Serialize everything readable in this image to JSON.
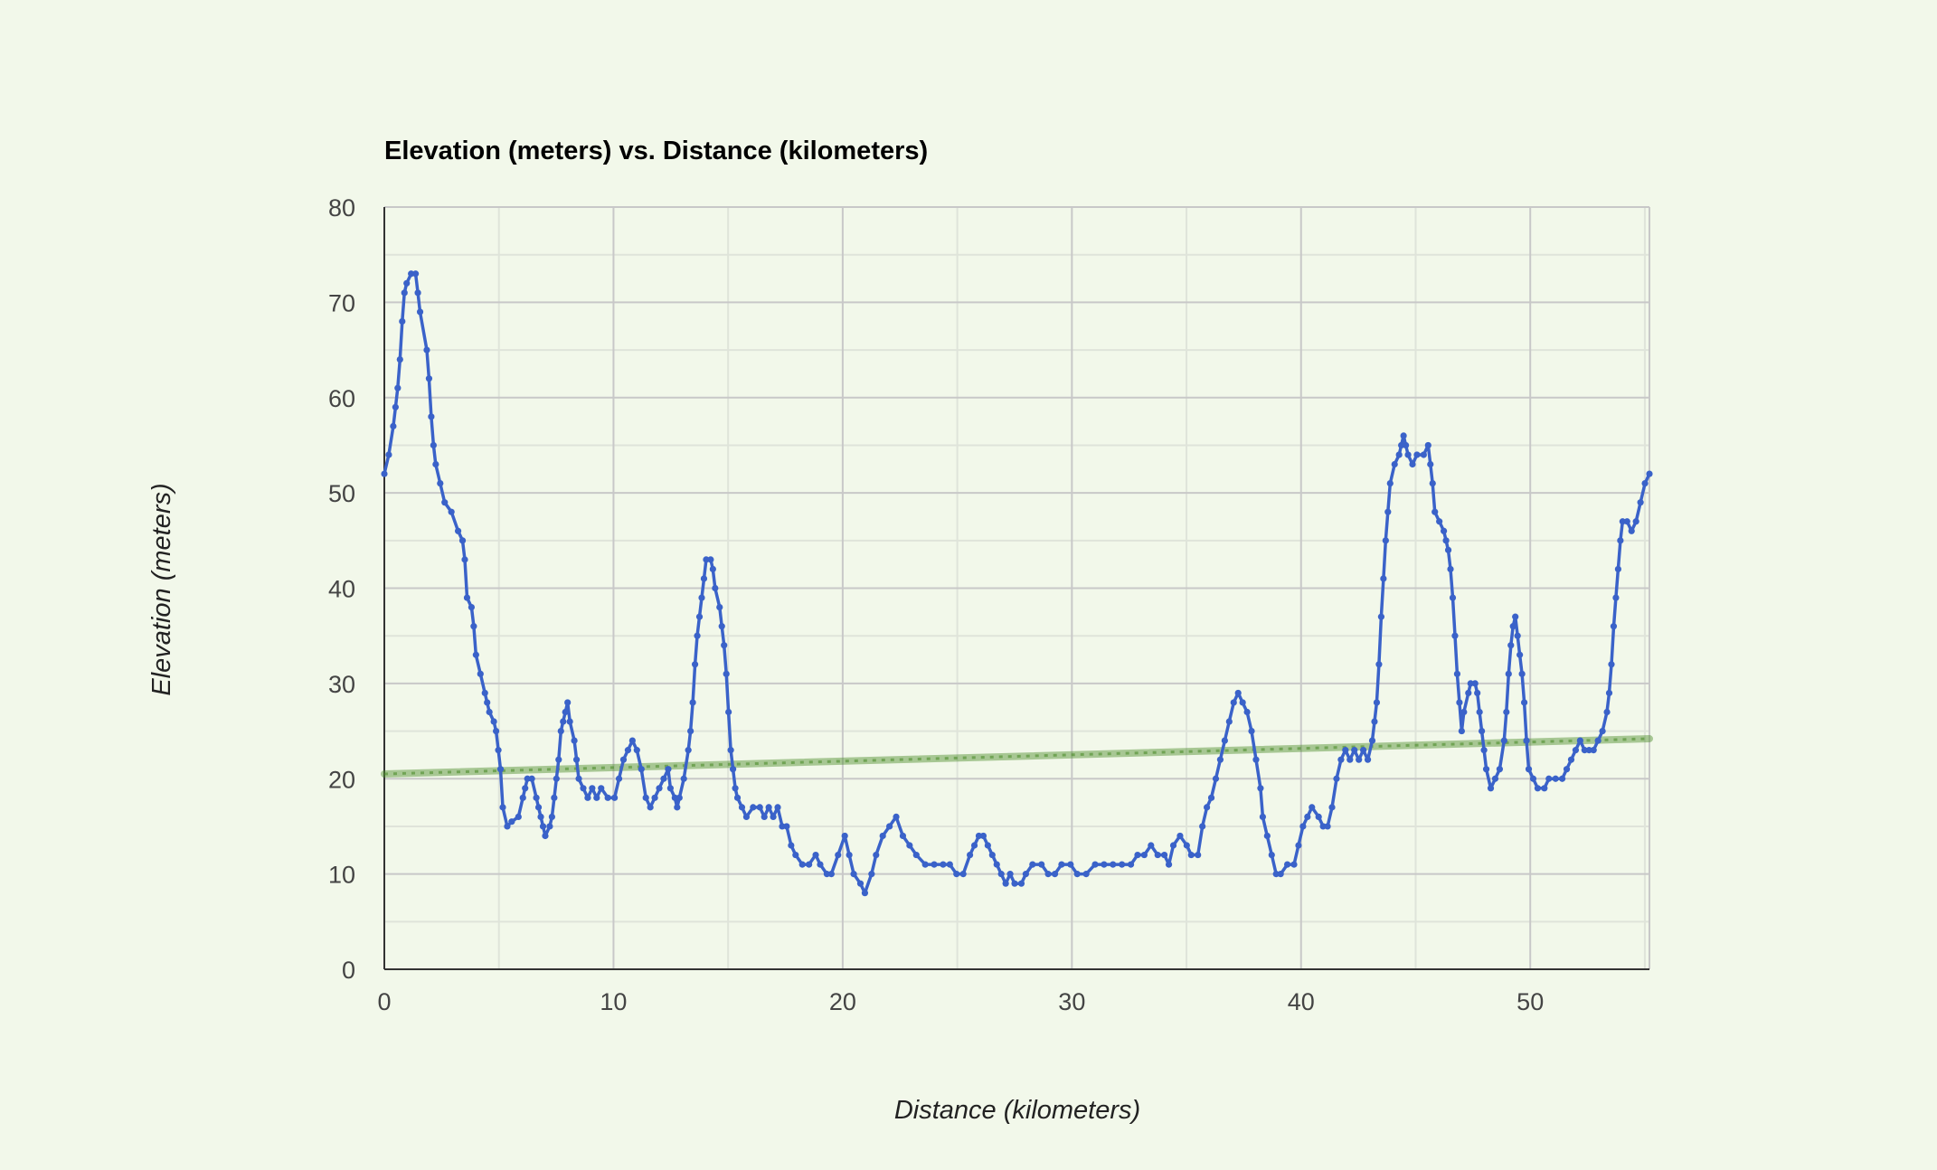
{
  "chart_data": {
    "type": "scatter",
    "title": "Elevation (meters) vs. Distance (kilometers)",
    "xlabel": "Distance (kilometers)",
    "ylabel": "Elevation (meters)",
    "xlim": [
      0,
      55.2
    ],
    "ylim": [
      0,
      80
    ],
    "x_ticks": [
      "0",
      "10",
      "20",
      "30",
      "40",
      "50"
    ],
    "y_ticks": [
      "0",
      "10",
      "20",
      "30",
      "40",
      "50",
      "60",
      "70",
      "80"
    ],
    "grid": true,
    "legend": "none",
    "series": [
      {
        "color": "#3a62c9",
        "points": [
          [
            0.0,
            52
          ],
          [
            0.2,
            54
          ],
          [
            0.4,
            57
          ],
          [
            0.5,
            59
          ],
          [
            0.6,
            61
          ],
          [
            0.7,
            64
          ],
          [
            0.8,
            68
          ],
          [
            0.9,
            71
          ],
          [
            1.0,
            72
          ],
          [
            1.2,
            73
          ],
          [
            1.4,
            73
          ],
          [
            1.5,
            71
          ],
          [
            1.6,
            69
          ],
          [
            1.9,
            65
          ],
          [
            2.0,
            62
          ],
          [
            2.1,
            58
          ],
          [
            2.2,
            55
          ],
          [
            2.3,
            53
          ],
          [
            2.5,
            51
          ],
          [
            2.7,
            49
          ],
          [
            3.0,
            48
          ],
          [
            3.3,
            46
          ],
          [
            3.5,
            45
          ],
          [
            3.6,
            43
          ],
          [
            3.7,
            39
          ],
          [
            3.9,
            38
          ],
          [
            4.0,
            36
          ],
          [
            4.1,
            33
          ],
          [
            4.3,
            31
          ],
          [
            4.5,
            29
          ],
          [
            4.6,
            28
          ],
          [
            4.7,
            27
          ],
          [
            4.9,
            26
          ],
          [
            5.0,
            25
          ],
          [
            5.1,
            23
          ],
          [
            5.2,
            21
          ],
          [
            5.3,
            17
          ],
          [
            5.5,
            15
          ],
          [
            5.7,
            15.5
          ],
          [
            6.0,
            16
          ],
          [
            6.2,
            18
          ],
          [
            6.3,
            19
          ],
          [
            6.4,
            20
          ],
          [
            6.6,
            20
          ],
          [
            6.8,
            18
          ],
          [
            6.9,
            17
          ],
          [
            7.0,
            16
          ],
          [
            7.1,
            15
          ],
          [
            7.2,
            14
          ],
          [
            7.4,
            15
          ],
          [
            7.5,
            16
          ],
          [
            7.6,
            18
          ],
          [
            7.7,
            20
          ],
          [
            7.8,
            22
          ],
          [
            7.9,
            25
          ],
          [
            8.0,
            26
          ],
          [
            8.1,
            27
          ],
          [
            8.2,
            28
          ],
          [
            8.3,
            26
          ],
          [
            8.5,
            24
          ],
          [
            8.6,
            22
          ],
          [
            8.7,
            20
          ],
          [
            8.9,
            19
          ],
          [
            9.1,
            18
          ],
          [
            9.3,
            19
          ],
          [
            9.5,
            18
          ],
          [
            9.7,
            19
          ],
          [
            10.0,
            18
          ],
          [
            10.3,
            18
          ],
          [
            10.5,
            20
          ],
          [
            10.7,
            22
          ],
          [
            10.9,
            23
          ],
          [
            11.1,
            24
          ],
          [
            11.3,
            23
          ],
          [
            11.5,
            21
          ],
          [
            11.7,
            18
          ],
          [
            11.9,
            17
          ],
          [
            12.1,
            18
          ],
          [
            12.3,
            19
          ],
          [
            12.5,
            20
          ],
          [
            12.7,
            21
          ],
          [
            12.8,
            19
          ],
          [
            13.0,
            18
          ],
          [
            13.1,
            17
          ],
          [
            13.2,
            18
          ],
          [
            13.4,
            20
          ],
          [
            13.6,
            23
          ],
          [
            13.7,
            25
          ],
          [
            13.8,
            28
          ],
          [
            13.9,
            32
          ],
          [
            14.0,
            35
          ],
          [
            14.1,
            37
          ],
          [
            14.2,
            39
          ],
          [
            14.3,
            41
          ],
          [
            14.4,
            43
          ],
          [
            14.6,
            43
          ],
          [
            14.7,
            42
          ],
          [
            14.8,
            40
          ],
          [
            15.0,
            38
          ],
          [
            15.1,
            36
          ],
          [
            15.2,
            34
          ],
          [
            15.3,
            31
          ],
          [
            15.4,
            27
          ],
          [
            15.5,
            23
          ],
          [
            15.6,
            21
          ],
          [
            15.7,
            19
          ],
          [
            15.8,
            18
          ],
          [
            16.0,
            17
          ],
          [
            16.2,
            16
          ],
          [
            16.5,
            17
          ],
          [
            16.8,
            17
          ],
          [
            17.0,
            16
          ],
          [
            17.2,
            17
          ],
          [
            17.4,
            16
          ],
          [
            17.6,
            17
          ],
          [
            17.8,
            15
          ],
          [
            18.0,
            15
          ],
          [
            18.2,
            13
          ],
          [
            18.4,
            12
          ],
          [
            18.7,
            11
          ],
          [
            19.0,
            11
          ],
          [
            19.3,
            12
          ],
          [
            19.5,
            11
          ],
          [
            19.8,
            10
          ],
          [
            20.0,
            10
          ],
          [
            20.3,
            12
          ],
          [
            20.6,
            14
          ],
          [
            20.8,
            12
          ],
          [
            21.0,
            10
          ],
          [
            21.3,
            9
          ],
          [
            21.5,
            8
          ],
          [
            21.8,
            10
          ],
          [
            22.0,
            12
          ],
          [
            22.3,
            14
          ],
          [
            22.6,
            15
          ],
          [
            22.9,
            16
          ],
          [
            23.2,
            14
          ],
          [
            23.5,
            13
          ],
          [
            23.8,
            12
          ],
          [
            24.2,
            11
          ],
          [
            24.6,
            11
          ],
          [
            25.0,
            11
          ],
          [
            25.3,
            11
          ],
          [
            25.6,
            10
          ],
          [
            25.9,
            10
          ],
          [
            26.2,
            12
          ],
          [
            26.4,
            13
          ],
          [
            26.6,
            14
          ],
          [
            26.8,
            14
          ],
          [
            27.0,
            13
          ],
          [
            27.2,
            12
          ],
          [
            27.4,
            11
          ],
          [
            27.6,
            10
          ],
          [
            27.8,
            9
          ],
          [
            28.0,
            10
          ],
          [
            28.2,
            9
          ],
          [
            28.5,
            9
          ],
          [
            28.7,
            10
          ],
          [
            29.0,
            11
          ],
          [
            29.4,
            11
          ],
          [
            29.7,
            10
          ],
          [
            30.0,
            10
          ],
          [
            30.3,
            11
          ],
          [
            30.7,
            11
          ],
          [
            31.0,
            10
          ],
          [
            31.4,
            10
          ],
          [
            31.8,
            11
          ],
          [
            32.2,
            11
          ],
          [
            32.6,
            11
          ],
          [
            33.0,
            11
          ],
          [
            33.4,
            11
          ],
          [
            33.7,
            12
          ],
          [
            34.0,
            12
          ],
          [
            34.3,
            13
          ],
          [
            34.6,
            12
          ],
          [
            34.9,
            12
          ],
          [
            35.1,
            11
          ],
          [
            35.3,
            13
          ],
          [
            35.6,
            14
          ],
          [
            35.9,
            13
          ],
          [
            36.1,
            12
          ],
          [
            36.4,
            12
          ],
          [
            36.6,
            15
          ],
          [
            36.8,
            17
          ],
          [
            37.0,
            18
          ],
          [
            37.2,
            20
          ],
          [
            37.4,
            22
          ],
          [
            37.6,
            24
          ],
          [
            37.8,
            26
          ],
          [
            38.0,
            28
          ],
          [
            38.2,
            29
          ],
          [
            38.4,
            28
          ],
          [
            38.6,
            27
          ],
          [
            38.8,
            25
          ],
          [
            39.0,
            22
          ],
          [
            39.2,
            19
          ],
          [
            39.3,
            16
          ],
          [
            39.5,
            14
          ],
          [
            39.7,
            12
          ],
          [
            39.9,
            10
          ],
          [
            40.1,
            10
          ],
          [
            40.4,
            11
          ],
          [
            40.7,
            11
          ],
          [
            40.9,
            13
          ],
          [
            41.1,
            15
          ],
          [
            41.3,
            16
          ],
          [
            41.5,
            17
          ],
          [
            41.8,
            16
          ],
          [
            42.0,
            15
          ],
          [
            42.2,
            15
          ],
          [
            42.4,
            17
          ],
          [
            42.6,
            20
          ],
          [
            42.8,
            22
          ],
          [
            43.0,
            23
          ],
          [
            43.2,
            22
          ],
          [
            43.4,
            23
          ],
          [
            43.6,
            22
          ],
          [
            43.8,
            23
          ],
          [
            44.0,
            22
          ],
          [
            44.2,
            24
          ],
          [
            44.3,
            26
          ],
          [
            44.4,
            28
          ],
          [
            44.5,
            32
          ],
          [
            44.6,
            37
          ],
          [
            44.7,
            41
          ],
          [
            44.8,
            45
          ],
          [
            44.9,
            48
          ],
          [
            45.0,
            51
          ],
          [
            45.2,
            53
          ],
          [
            45.4,
            54
          ],
          [
            45.5,
            55
          ],
          [
            45.6,
            56
          ],
          [
            45.7,
            55
          ],
          [
            45.8,
            54
          ],
          [
            46.0,
            53
          ],
          [
            46.2,
            54
          ],
          [
            46.5,
            54
          ],
          [
            46.7,
            55
          ],
          [
            46.8,
            53
          ],
          [
            46.9,
            51
          ],
          [
            47.0,
            48
          ],
          [
            47.2,
            47
          ],
          [
            47.4,
            46
          ],
          [
            47.5,
            45
          ],
          [
            47.6,
            44
          ],
          [
            47.7,
            42
          ],
          [
            47.8,
            39
          ],
          [
            47.9,
            35
          ],
          [
            48.0,
            31
          ],
          [
            48.1,
            28
          ],
          [
            48.2,
            25
          ],
          [
            48.3,
            27
          ],
          [
            48.5,
            29
          ],
          [
            48.6,
            30
          ],
          [
            48.8,
            30
          ],
          [
            48.9,
            29
          ],
          [
            49.0,
            27
          ],
          [
            49.1,
            25
          ],
          [
            49.2,
            23
          ],
          [
            49.3,
            21
          ],
          [
            49.5,
            19
          ],
          [
            49.7,
            20
          ],
          [
            49.9,
            21
          ],
          [
            50.1,
            24
          ],
          [
            50.2,
            27
          ],
          [
            50.3,
            31
          ],
          [
            50.4,
            34
          ],
          [
            50.5,
            36
          ],
          [
            50.6,
            37
          ],
          [
            50.7,
            35
          ],
          [
            50.8,
            33
          ],
          [
            50.9,
            31
          ],
          [
            51.0,
            28
          ],
          [
            51.1,
            24
          ],
          [
            51.2,
            21
          ],
          [
            51.4,
            20
          ],
          [
            51.6,
            19
          ],
          [
            51.9,
            19
          ],
          [
            52.1,
            20
          ],
          [
            52.4,
            20
          ],
          [
            52.7,
            20
          ],
          [
            52.9,
            21
          ],
          [
            53.1,
            22
          ],
          [
            53.3,
            23
          ],
          [
            53.5,
            24
          ],
          [
            53.7,
            23
          ],
          [
            53.9,
            23
          ],
          [
            54.1,
            23
          ],
          [
            54.3,
            24
          ],
          [
            54.5,
            25
          ],
          [
            54.7,
            27
          ],
          [
            54.8,
            29
          ],
          [
            54.9,
            32
          ],
          [
            55.0,
            36
          ],
          [
            55.1,
            39
          ],
          [
            55.2,
            42
          ],
          [
            55.3,
            45
          ],
          [
            55.4,
            47
          ],
          [
            55.6,
            47
          ],
          [
            55.8,
            46
          ],
          [
            56.0,
            47
          ],
          [
            56.2,
            49
          ],
          [
            56.4,
            51
          ],
          [
            56.6,
            52
          ]
        ]
      },
      {
        "color": "#4c8c2b",
        "trendline": true,
        "points": [
          [
            0,
            20.5
          ],
          [
            55.2,
            24.2
          ]
        ]
      }
    ],
    "grid_color_major": "#c8c8c8",
    "grid_color_minor": "#dfe4da",
    "background": "#f2f8ea"
  }
}
